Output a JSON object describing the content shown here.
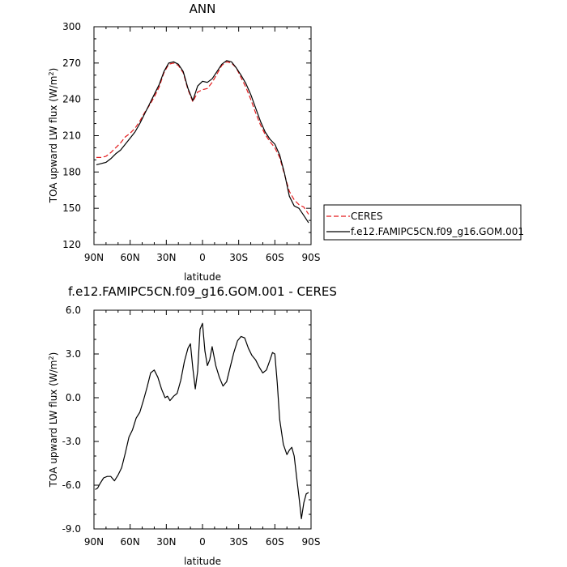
{
  "chart_data": [
    {
      "type": "line",
      "title": "ANN",
      "xlabel": "latitude",
      "ylabel": "TOA upward LW flux (W/m",
      "ylabel_sup": "2",
      "ylabel_suffix": ")",
      "xlim": [
        90,
        -90
      ],
      "ylim": [
        120,
        300
      ],
      "x_ticks": [
        {
          "value": 90,
          "label": "90N"
        },
        {
          "value": 60,
          "label": "60N"
        },
        {
          "value": 30,
          "label": "30N"
        },
        {
          "value": 0,
          "label": "0"
        },
        {
          "value": -30,
          "label": "30S"
        },
        {
          "value": -60,
          "label": "60S"
        },
        {
          "value": -90,
          "label": "90S"
        }
      ],
      "y_ticks": [
        {
          "value": 120,
          "label": "120"
        },
        {
          "value": 150,
          "label": "150"
        },
        {
          "value": 180,
          "label": "180"
        },
        {
          "value": 210,
          "label": "210"
        },
        {
          "value": 240,
          "label": "240"
        },
        {
          "value": 270,
          "label": "270"
        },
        {
          "value": 300,
          "label": "300"
        }
      ],
      "grid": false,
      "legend_position": "right",
      "series": [
        {
          "name": "CERES",
          "color": "#e31a1c",
          "dash": "dashed",
          "x": [
            88,
            84,
            80,
            76,
            72,
            68,
            64,
            60,
            56,
            52,
            48,
            44,
            40,
            36,
            32,
            28,
            24,
            20,
            16,
            12,
            8,
            4,
            0,
            -4,
            -8,
            -12,
            -16,
            -20,
            -24,
            -28,
            -32,
            -36,
            -40,
            -44,
            -48,
            -52,
            -56,
            -60,
            -64,
            -68,
            -72,
            -76,
            -80,
            -84,
            -88
          ],
          "y": [
            192,
            192,
            193,
            196,
            200,
            204,
            209,
            212,
            216,
            222,
            229,
            235,
            242,
            250,
            262,
            269,
            270,
            268,
            262,
            248,
            238,
            246,
            248,
            249,
            254,
            261,
            268,
            271,
            270,
            266,
            258,
            250,
            240,
            229,
            219,
            211,
            205,
            200,
            192,
            178,
            164,
            157,
            153,
            151,
            145
          ]
        },
        {
          "name": "f.e12.FAMIPC5CN.f09_g16.GOM.001",
          "color": "#000000",
          "dash": "solid",
          "x": [
            88,
            84,
            80,
            76,
            72,
            68,
            64,
            60,
            56,
            52,
            48,
            44,
            40,
            36,
            32,
            28,
            24,
            20,
            16,
            12,
            8,
            4,
            0,
            -4,
            -8,
            -12,
            -16,
            -20,
            -24,
            -28,
            -32,
            -36,
            -40,
            -44,
            -48,
            -52,
            -56,
            -60,
            -64,
            -68,
            -72,
            -76,
            -80,
            -84,
            -88
          ],
          "y": [
            186,
            187,
            188,
            191,
            195,
            198,
            203,
            208,
            213,
            220,
            228,
            236,
            244,
            252,
            263,
            270,
            271,
            269,
            263,
            249,
            239,
            251,
            255,
            254,
            257,
            263,
            269,
            272,
            271,
            266,
            260,
            253,
            244,
            233,
            222,
            213,
            207,
            203,
            194,
            179,
            160,
            152,
            150,
            144,
            138
          ]
        }
      ]
    },
    {
      "type": "line",
      "title": "f.e12.FAMIPC5CN.f09_g16.GOM.001 - CERES",
      "xlabel": "latitude",
      "ylabel": "TOA upward LW flux (W/m",
      "ylabel_sup": "2",
      "ylabel_suffix": ")",
      "xlim": [
        90,
        -90
      ],
      "ylim": [
        -9,
        6
      ],
      "x_ticks": [
        {
          "value": 90,
          "label": "90N"
        },
        {
          "value": 60,
          "label": "60N"
        },
        {
          "value": 30,
          "label": "30N"
        },
        {
          "value": 0,
          "label": "0"
        },
        {
          "value": -30,
          "label": "30S"
        },
        {
          "value": -60,
          "label": "60S"
        },
        {
          "value": -90,
          "label": "90S"
        }
      ],
      "y_ticks": [
        {
          "value": -9,
          "label": "-9.0"
        },
        {
          "value": -6,
          "label": "-6.0"
        },
        {
          "value": -3,
          "label": "-3.0"
        },
        {
          "value": 0,
          "label": "0.0"
        },
        {
          "value": 3,
          "label": "3.0"
        },
        {
          "value": 6,
          "label": "6.0"
        }
      ],
      "grid": false,
      "series": [
        {
          "name": "",
          "color": "#000000",
          "dash": "solid",
          "x": [
            89,
            87,
            85,
            82,
            79,
            76,
            73,
            70,
            67,
            64,
            61,
            58,
            55,
            52,
            49,
            46,
            43,
            40,
            37,
            34,
            31,
            29,
            27,
            24,
            21,
            18,
            15,
            12,
            10,
            8,
            6,
            4,
            2,
            0,
            -2,
            -4,
            -6,
            -8,
            -11,
            -14,
            -17,
            -20,
            -23,
            -26,
            -29,
            -32,
            -35,
            -38,
            -41,
            -44,
            -47,
            -50,
            -53,
            -56,
            -58,
            -60,
            -62,
            -64,
            -67,
            -70,
            -72,
            -74,
            -76,
            -78,
            -80,
            -82,
            -84,
            -86,
            -88
          ],
          "y": [
            -6.3,
            -6.2,
            -5.9,
            -5.5,
            -5.4,
            -5.4,
            -5.7,
            -5.3,
            -4.8,
            -3.8,
            -2.7,
            -2.2,
            -1.4,
            -1.0,
            -0.2,
            0.7,
            1.7,
            1.9,
            1.4,
            0.6,
            0.0,
            0.1,
            -0.2,
            0.1,
            0.3,
            1.2,
            2.5,
            3.4,
            3.7,
            2.0,
            0.6,
            1.8,
            4.7,
            5.1,
            3.2,
            2.2,
            2.6,
            3.5,
            2.2,
            1.4,
            0.8,
            1.1,
            2.1,
            3.1,
            3.9,
            4.2,
            4.1,
            3.4,
            2.9,
            2.6,
            2.1,
            1.7,
            1.9,
            2.6,
            3.1,
            3.0,
            1.0,
            -1.5,
            -3.2,
            -3.9,
            -3.6,
            -3.4,
            -4.0,
            -5.4,
            -6.8,
            -8.3,
            -7.2,
            -6.6,
            -6.5
          ]
        }
      ]
    }
  ]
}
